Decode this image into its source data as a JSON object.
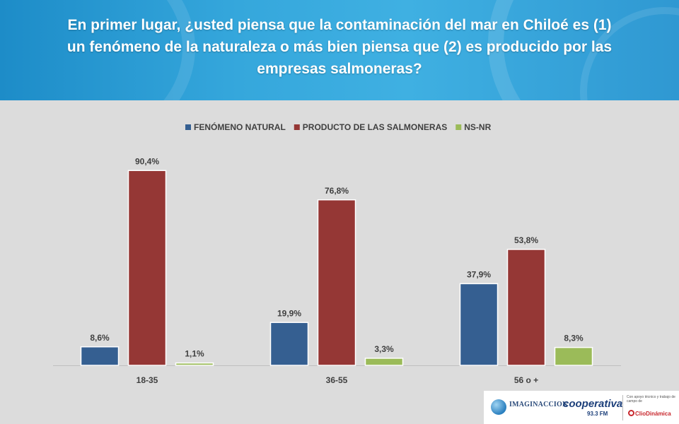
{
  "title": "En primer lugar, ¿usted piensa que la contaminación del mar en Chiloé es (1) un fenómeno de la naturaleza o más bien piensa que (2) es producido por las empresas salmoneras?",
  "chart_data": {
    "type": "bar",
    "categories": [
      "18-35",
      "36-55",
      "56 o +"
    ],
    "series": [
      {
        "name": "FENÓMENO NATURAL",
        "color": "#355f91",
        "values": [
          8.6,
          19.9,
          37.9
        ],
        "labels": [
          "8,6%",
          "19,9%",
          "37,9%"
        ]
      },
      {
        "name": "PRODUCTO DE LAS SALMONERAS",
        "color": "#953735",
        "values": [
          90.4,
          76.8,
          53.8
        ],
        "labels": [
          "90,4%",
          "76,8%",
          "53,8%"
        ]
      },
      {
        "name": "NS-NR",
        "color": "#9bbb59",
        "values": [
          1.1,
          3.3,
          8.3
        ],
        "labels": [
          "1,1%",
          "3,3%",
          "8,3%"
        ]
      }
    ],
    "ylim": [
      0,
      100
    ],
    "legend": "top",
    "grid": false
  },
  "footer": {
    "imaginacion": "IMAGINACCION",
    "cooperativa": "cooperativa",
    "cooperativa_freq": "93.3 FM",
    "support_text": "Con apoyo técnico y trabajo de campo de",
    "cliodinamica": "ClioDinámica"
  }
}
